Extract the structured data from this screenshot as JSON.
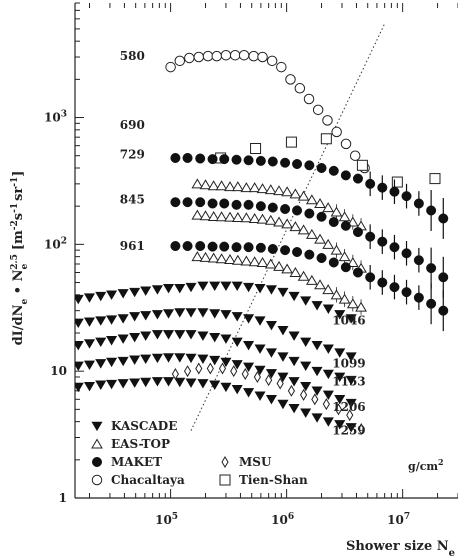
{
  "chart_data": {
    "type": "scatter",
    "xlabel": "Shower size N",
    "xlabel_sub": "e",
    "ylabel": "dI/dN",
    "ylabel_sub": "e",
    "ylabel_mid": " • N",
    "ylabel_sub2": "e",
    "ylabel_sup": "2.5",
    "ylabel_units": "[m",
    "ylabel_units_sup1": "-2",
    "ylabel_units_mid1": "s",
    "ylabel_units_sup2": "-1",
    "ylabel_units_mid2": "sr",
    "ylabel_units_sup3": "-1",
    "ylabel_units_end": "]",
    "xscale": "log",
    "yscale": "log",
    "xlim": [
      15000,
      30000000
    ],
    "ylim": [
      1,
      8000
    ],
    "x_ticks": [
      {
        "value": 100000,
        "base": "10",
        "exp": "5"
      },
      {
        "value": 1000000,
        "base": "10",
        "exp": "6"
      },
      {
        "value": 10000000,
        "base": "10",
        "exp": "7"
      }
    ],
    "y_ticks": [
      {
        "value": 1,
        "label": "1"
      },
      {
        "value": 10,
        "label": "10"
      },
      {
        "value": 100,
        "base": "10",
        "exp": "2"
      },
      {
        "value": 1000,
        "base": "10",
        "exp": "3"
      }
    ],
    "depth_unit": "g/cm",
    "depth_unit_sup": "2",
    "depth_labels": [
      {
        "text": "580",
        "x": 60000,
        "y": 3050
      },
      {
        "text": "690",
        "x": 60000,
        "y": 870
      },
      {
        "text": "729",
        "x": 60000,
        "y": 510
      },
      {
        "text": "845",
        "x": 60000,
        "y": 225
      },
      {
        "text": "961",
        "x": 60000,
        "y": 97
      },
      {
        "text": "1046",
        "x": 4800000,
        "y": 25
      },
      {
        "text": "1099",
        "x": 4800000,
        "y": 11.5
      },
      {
        "text": "1153",
        "x": 4800000,
        "y": 8.3
      },
      {
        "text": "1206",
        "x": 4800000,
        "y": 5.2
      },
      {
        "text": "1259",
        "x": 4800000,
        "y": 3.4
      }
    ],
    "knee_line": {
      "x": [
        150000,
        7000000
      ],
      "y": [
        3.4,
        5500
      ]
    },
    "legend": [
      {
        "name": "KASCADE",
        "marker": "triangle-down-filled"
      },
      {
        "name": "EAS-TOP",
        "marker": "triangle-up-open"
      },
      {
        "name": "MAKET",
        "marker": "circle-filled"
      },
      {
        "name": "MSU",
        "marker": "diamond-open"
      },
      {
        "name": "Chacaltaya",
        "marker": "circle-open"
      },
      {
        "name": "Tien-Shan",
        "marker": "square-open"
      }
    ],
    "series": [
      {
        "name": "Chacaltaya",
        "marker": "circle-open",
        "x": [
          100000,
          120000,
          145000,
          175000,
          210000,
          250000,
          300000,
          360000,
          430000,
          520000,
          620000,
          750000,
          900000,
          1080000,
          1300000,
          1560000,
          1870000,
          2250000,
          2700000,
          3250000,
          3900000,
          4700000
        ],
        "y": [
          2500,
          2800,
          2950,
          3000,
          3050,
          3050,
          3100,
          3100,
          3100,
          3050,
          3000,
          2800,
          2500,
          2000,
          1700,
          1400,
          1150,
          950,
          770,
          620,
          500,
          400
        ]
      },
      {
        "name": "Tien-Shan",
        "marker": "square-open",
        "x": [
          270000,
          540000,
          1100000,
          2200000,
          4500000,
          9000000,
          19000000
        ],
        "y": [
          480,
          570,
          640,
          680,
          420,
          310,
          330
        ]
      },
      {
        "name": "MAKET 729",
        "marker": "circle-filled",
        "x": [
          110000,
          140000,
          180000,
          230000,
          290000,
          370000,
          470000,
          600000,
          760000,
          970000,
          1230000,
          1570000,
          2000000,
          2550000,
          3240000,
          4120000,
          5250000,
          6680000,
          8500000,
          10800000,
          13800000,
          17600000,
          22400000
        ],
        "y": [
          480,
          480,
          475,
          470,
          470,
          465,
          460,
          455,
          450,
          440,
          430,
          420,
          400,
          380,
          350,
          330,
          300,
          280,
          260,
          240,
          210,
          185,
          160
        ]
      },
      {
        "name": "EAS-TOP 729",
        "marker": "triangle-up-open",
        "x": [
          170000,
          200000,
          235000,
          275000,
          325000,
          380000,
          450000,
          530000,
          620000,
          730000,
          860000,
          1010000,
          1190000,
          1400000,
          1650000,
          1940000,
          2280000,
          2690000,
          3160000,
          3720000,
          4380000
        ],
        "y": [
          300,
          295,
          290,
          290,
          285,
          285,
          280,
          280,
          275,
          270,
          265,
          260,
          250,
          240,
          225,
          210,
          195,
          180,
          165,
          150,
          140
        ]
      },
      {
        "name": "MAKET 845",
        "marker": "circle-filled",
        "x": [
          110000,
          140000,
          180000,
          230000,
          290000,
          370000,
          470000,
          600000,
          760000,
          970000,
          1230000,
          1570000,
          2000000,
          2550000,
          3240000,
          4120000,
          5250000,
          6680000,
          8500000,
          10800000,
          13800000,
          17600000,
          22400000
        ],
        "y": [
          215,
          215,
          215,
          210,
          210,
          205,
          205,
          200,
          195,
          190,
          185,
          175,
          165,
          150,
          140,
          125,
          115,
          105,
          95,
          85,
          75,
          65,
          55
        ]
      },
      {
        "name": "EAS-TOP 845",
        "marker": "triangle-up-open",
        "x": [
          170000,
          200000,
          235000,
          275000,
          325000,
          380000,
          450000,
          530000,
          620000,
          730000,
          860000,
          1010000,
          1190000,
          1400000,
          1650000,
          1940000,
          2280000,
          2690000,
          3160000,
          3720000,
          4380000
        ],
        "y": [
          170,
          168,
          166,
          165,
          164,
          163,
          162,
          160,
          158,
          155,
          150,
          145,
          138,
          130,
          120,
          110,
          100,
          90,
          80,
          72,
          65
        ]
      },
      {
        "name": "MAKET 961",
        "marker": "circle-filled",
        "x": [
          110000,
          140000,
          180000,
          230000,
          290000,
          370000,
          470000,
          600000,
          760000,
          970000,
          1230000,
          1570000,
          2000000,
          2550000,
          3240000,
          4120000,
          5250000,
          6680000,
          8500000,
          10800000,
          13800000,
          17600000,
          22400000
        ],
        "y": [
          97,
          97,
          97,
          96,
          96,
          95,
          95,
          94,
          92,
          90,
          87,
          83,
          78,
          72,
          66,
          60,
          55,
          50,
          46,
          42,
          38,
          34,
          30
        ]
      },
      {
        "name": "EAS-TOP 961",
        "marker": "triangle-up-open",
        "x": [
          170000,
          200000,
          235000,
          275000,
          325000,
          380000,
          450000,
          530000,
          620000,
          730000,
          860000,
          1010000,
          1190000,
          1400000,
          1650000,
          1940000,
          2280000,
          2690000,
          3160000,
          3720000,
          4380000
        ],
        "y": [
          80,
          79,
          78,
          77,
          76,
          75,
          74,
          73,
          72,
          70,
          67,
          64,
          60,
          56,
          52,
          48,
          44,
          40,
          37,
          34,
          32
        ]
      },
      {
        "name": "KASCADE 1046",
        "marker": "triangle-down-filled",
        "x": [
          16000,
          20000,
          25000,
          31000,
          39000,
          49000,
          61000,
          77000,
          96000,
          120000,
          150000,
          190000,
          240000,
          300000,
          375000,
          470000,
          590000,
          740000,
          930000,
          1160000,
          1460000,
          1830000,
          2290000,
          2870000,
          3600000
        ],
        "y": [
          37,
          38,
          39,
          40,
          41,
          42,
          43,
          44,
          45,
          45,
          46,
          47,
          47,
          47,
          47,
          46,
          45,
          44,
          42,
          39,
          36,
          33,
          31,
          28,
          26
        ]
      },
      {
        "name": "KASCADE 1099",
        "marker": "triangle-down-filled",
        "x": [
          16000,
          20000,
          25000,
          31000,
          39000,
          49000,
          61000,
          77000,
          96000,
          120000,
          150000,
          190000,
          240000,
          300000,
          375000,
          470000,
          590000,
          740000,
          930000,
          1160000,
          1460000,
          1830000,
          2290000,
          2870000,
          3600000
        ],
        "y": [
          24,
          24.5,
          25,
          25.5,
          26,
          27,
          27.5,
          28,
          28.5,
          29,
          29,
          29,
          28.5,
          28,
          27,
          26,
          25,
          23,
          21,
          19,
          17,
          16,
          15,
          14,
          13
        ]
      },
      {
        "name": "KASCADE 1153",
        "marker": "triangle-down-filled",
        "x": [
          16000,
          20000,
          25000,
          31000,
          39000,
          49000,
          61000,
          77000,
          96000,
          120000,
          150000,
          190000,
          240000,
          300000,
          375000,
          470000,
          590000,
          740000,
          930000,
          1160000,
          1460000,
          1830000,
          2290000,
          2870000,
          3600000
        ],
        "y": [
          16,
          16.5,
          17,
          17.5,
          18,
          18.5,
          19,
          19.5,
          19.5,
          19.5,
          19.5,
          19,
          18.5,
          18,
          17,
          16,
          15,
          14,
          13,
          12,
          11,
          10,
          9.5,
          9,
          8.5
        ]
      },
      {
        "name": "KASCADE 1206",
        "marker": "triangle-down-filled",
        "x": [
          16000,
          20000,
          25000,
          31000,
          39000,
          49000,
          61000,
          77000,
          96000,
          120000,
          150000,
          190000,
          240000,
          300000,
          375000,
          470000,
          590000,
          740000,
          930000,
          1160000,
          1460000,
          1830000,
          2290000,
          2870000,
          3600000
        ],
        "y": [
          11,
          11.2,
          11.5,
          11.8,
          12,
          12.3,
          12.5,
          12.7,
          12.8,
          12.8,
          12.7,
          12.5,
          12.2,
          11.8,
          11.3,
          10.8,
          10.2,
          9.6,
          9,
          8.3,
          7.6,
          7,
          6.5,
          6,
          5.6
        ]
      },
      {
        "name": "KASCADE 1259",
        "marker": "triangle-down-filled",
        "x": [
          16000,
          20000,
          25000,
          31000,
          39000,
          49000,
          61000,
          77000,
          96000,
          120000,
          150000,
          190000,
          240000,
          300000,
          375000,
          470000,
          590000,
          740000,
          930000,
          1160000,
          1460000,
          1830000,
          2290000,
          2870000,
          3600000
        ],
        "y": [
          7.5,
          7.6,
          7.8,
          7.9,
          8,
          8.1,
          8.2,
          8.3,
          8.3,
          8.2,
          8.1,
          8,
          7.8,
          7.5,
          7.2,
          6.8,
          6.4,
          6,
          5.5,
          5.1,
          4.7,
          4.3,
          4,
          3.8,
          3.6
        ]
      },
      {
        "name": "MSU",
        "marker": "diamond-open",
        "x": [
          110000,
          140000,
          175000,
          220000,
          280000,
          350000,
          440000,
          560000,
          700000,
          880000,
          1100000,
          1400000,
          1750000,
          2200000,
          2800000,
          3500000,
          4400000
        ],
        "y": [
          9.5,
          10,
          10.5,
          10.5,
          10.5,
          10,
          9.5,
          9,
          8.5,
          8,
          7,
          6.5,
          6,
          5.5,
          5,
          4.5,
          3.5
        ]
      }
    ]
  }
}
